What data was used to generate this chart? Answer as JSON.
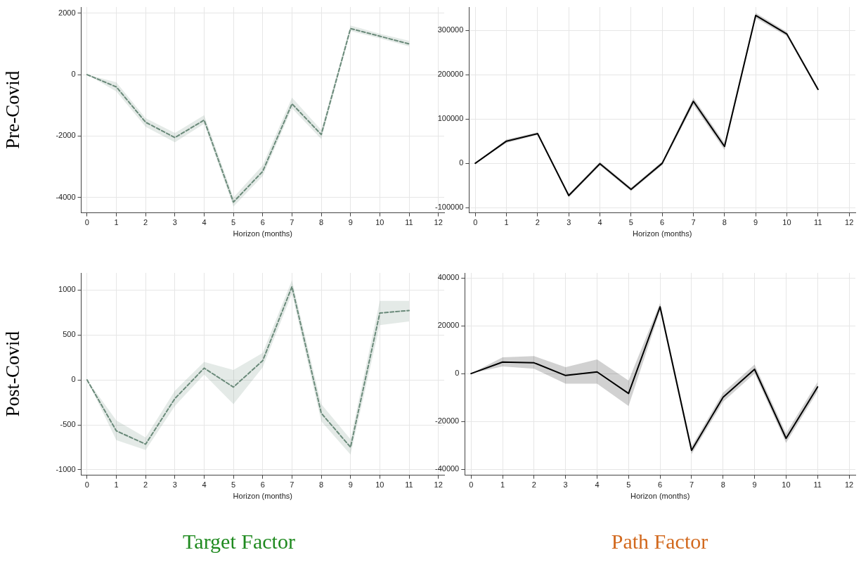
{
  "chart_data": [
    {
      "type": "line",
      "ylabel": "Pre-Covid",
      "xlabel": "Horizon (months)",
      "x": [
        0,
        1,
        2,
        3,
        4,
        5,
        6,
        7,
        8,
        9,
        10,
        11
      ],
      "xlim": [
        -0.2,
        12.2
      ],
      "xticks": [
        0,
        1,
        2,
        3,
        4,
        5,
        6,
        7,
        8,
        9,
        10,
        11,
        12
      ],
      "ylim": [
        -4500,
        2200
      ],
      "yticks": [
        -4000,
        -2000,
        0,
        2000
      ],
      "grid": true,
      "legend": false,
      "marker": "none",
      "line_style": "dashed",
      "series": [
        {
          "color": "#6b8a7a",
          "values": [
            0,
            -400,
            -1550,
            -2050,
            -1480,
            -4150,
            -3150,
            -950,
            -1950,
            1500,
            1250,
            1000
          ],
          "lower": [
            0,
            -550,
            -1700,
            -2200,
            -1600,
            -4300,
            -3300,
            -1100,
            -2100,
            1420,
            1180,
            920
          ],
          "upper": [
            0,
            -250,
            -1420,
            -1900,
            -1320,
            -4000,
            -2950,
            -750,
            -1800,
            1600,
            1330,
            1100
          ]
        }
      ]
    },
    {
      "type": "line",
      "xlabel": "Horizon (months)",
      "x": [
        0,
        1,
        2,
        3,
        4,
        5,
        6,
        7,
        8,
        9,
        10,
        11
      ],
      "xlim": [
        -0.2,
        12.2
      ],
      "xticks": [
        0,
        1,
        2,
        3,
        4,
        5,
        6,
        7,
        8,
        9,
        10,
        11,
        12
      ],
      "ylim": [
        -112000,
        353000
      ],
      "yticks": [
        -100000,
        0,
        100000,
        200000,
        300000
      ],
      "grid": true,
      "legend": false,
      "marker": "none",
      "line_style": "solid",
      "series": [
        {
          "color": "#000000",
          "values": [
            0,
            50000,
            67000,
            -73000,
            -1000,
            -59000,
            0,
            140000,
            38000,
            334000,
            292000,
            167000
          ],
          "lower": [
            0,
            46000,
            64000,
            -77000,
            -5000,
            -63000,
            -4000,
            132000,
            30000,
            328000,
            287000,
            163000
          ],
          "upper": [
            0,
            54000,
            70000,
            -69000,
            3000,
            -55000,
            4000,
            148000,
            46000,
            340000,
            297000,
            171000
          ]
        }
      ]
    },
    {
      "type": "line",
      "ylabel": "Post-Covid",
      "xlabel": "Horizon (months)",
      "annotations": [
        "Target Factor"
      ],
      "x": [
        0,
        1,
        2,
        3,
        4,
        5,
        6,
        7,
        8,
        9,
        10,
        11
      ],
      "xlim": [
        -0.2,
        12.2
      ],
      "xticks": [
        0,
        1,
        2,
        3,
        4,
        5,
        6,
        7,
        8,
        9,
        10,
        11,
        12
      ],
      "ylim": [
        -1060,
        1190
      ],
      "yticks": [
        -1000,
        -500,
        0,
        500,
        1000
      ],
      "grid": true,
      "legend": false,
      "marker": "none",
      "line_style": "dashed",
      "series": [
        {
          "color": "#6b8a7a",
          "values": [
            0,
            -567,
            -715,
            -208,
            131,
            -80,
            214,
            1037,
            -370,
            -749,
            744,
            772
          ],
          "lower": [
            0,
            -670,
            -780,
            -290,
            60,
            -270,
            140,
            960,
            -460,
            -830,
            610,
            650
          ],
          "upper": [
            0,
            -450,
            -640,
            -120,
            200,
            110,
            300,
            1110,
            -270,
            -660,
            880,
            880
          ]
        }
      ]
    },
    {
      "type": "line",
      "xlabel": "Horizon (months)",
      "annotations": [
        "Path Factor"
      ],
      "x": [
        0,
        1,
        2,
        3,
        4,
        5,
        6,
        7,
        8,
        9,
        10,
        11
      ],
      "xlim": [
        -0.2,
        12.2
      ],
      "xticks": [
        0,
        1,
        2,
        3,
        4,
        5,
        6,
        7,
        8,
        9,
        10,
        11,
        12
      ],
      "ylim": [
        -42500,
        42100
      ],
      "yticks": [
        -40000,
        -20000,
        0,
        20000,
        40000
      ],
      "grid": true,
      "legend": false,
      "marker": "none",
      "line_style": "solid",
      "series": [
        {
          "color": "#000000",
          "values": [
            0,
            4800,
            4500,
            -800,
            700,
            -8300,
            27900,
            -32100,
            -9900,
            1800,
            -27100,
            -5600
          ],
          "lower": [
            0,
            3000,
            2000,
            -4200,
            -4200,
            -13600,
            26300,
            -33700,
            -11800,
            0,
            -29000,
            -7500
          ],
          "upper": [
            0,
            6800,
            7300,
            2700,
            5900,
            -2900,
            29500,
            -30500,
            -8000,
            3800,
            -25000,
            -3500
          ]
        }
      ]
    }
  ]
}
